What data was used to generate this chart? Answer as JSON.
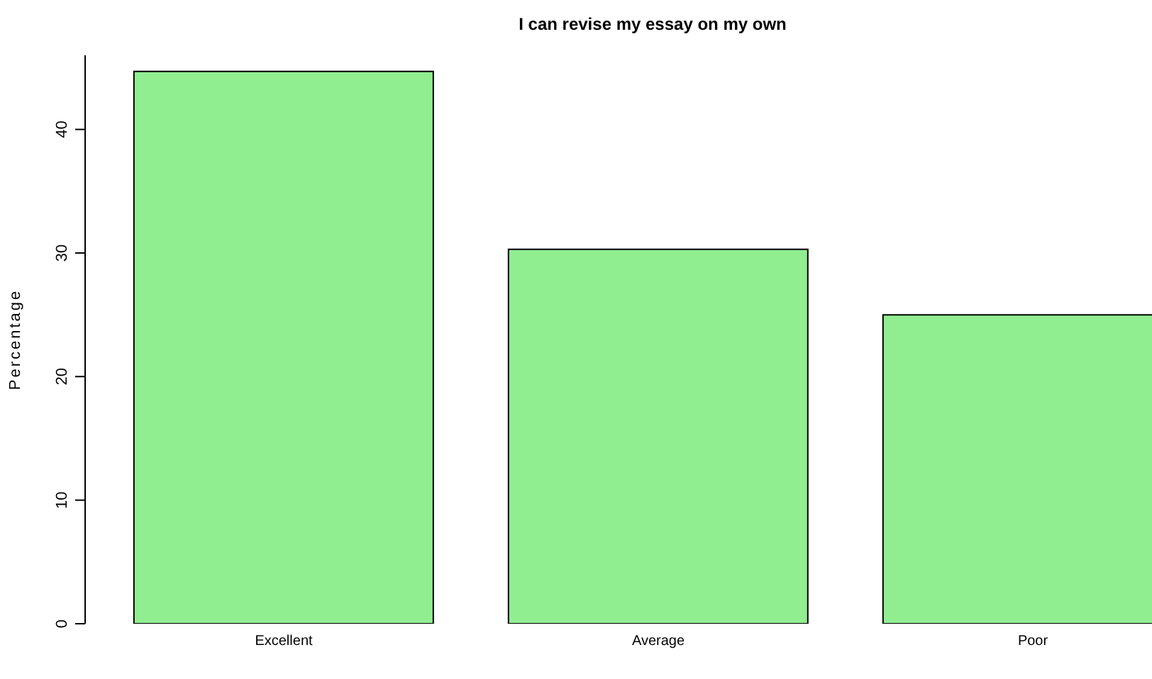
{
  "chart_data": {
    "type": "bar",
    "title": "I can revise my essay on my own",
    "ylabel": "Percentage",
    "categories": [
      "Excellent",
      "Average",
      "Poor"
    ],
    "values": [
      44.7,
      30.3,
      25.0
    ],
    "color": "#90ee90",
    "ylim": [
      0,
      46
    ],
    "yticks": [
      0,
      10,
      20,
      30,
      40
    ],
    "grid": false,
    "legend": false
  }
}
